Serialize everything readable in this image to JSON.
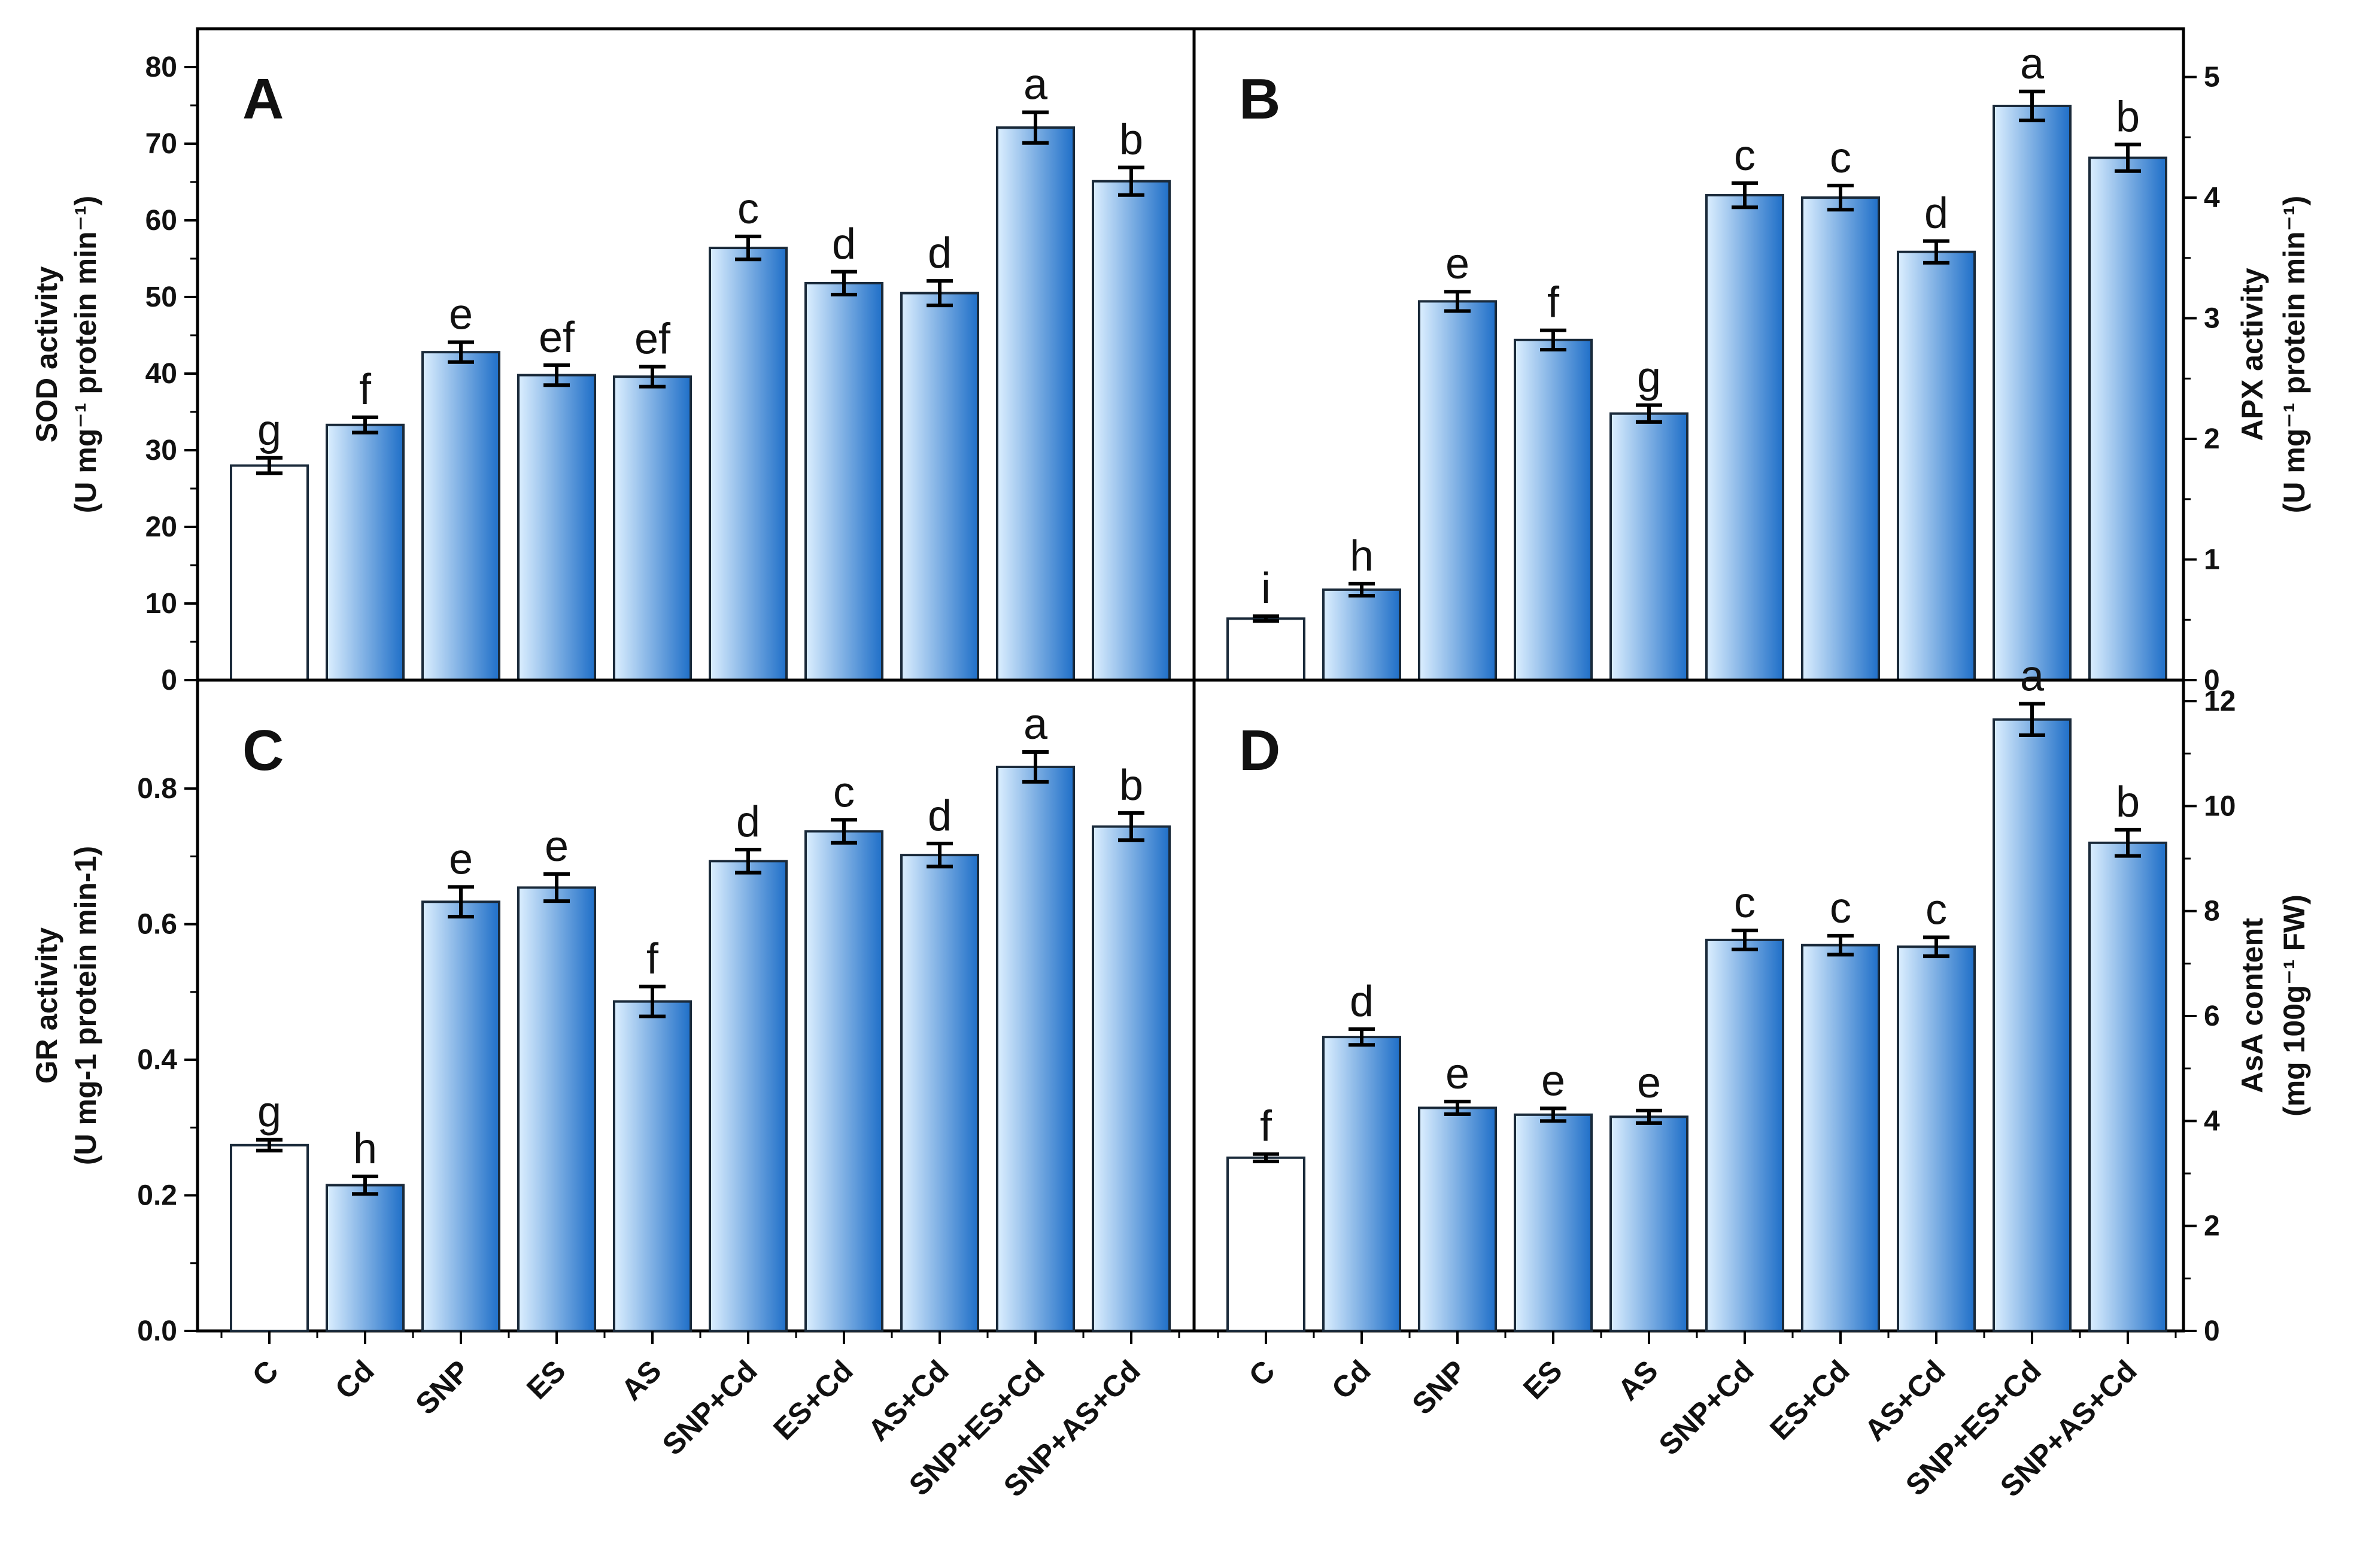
{
  "figure": {
    "categories": [
      "C",
      "Cd",
      "SNP",
      "ES",
      "AS",
      "SNP+Cd",
      "ES+Cd",
      "AS+Cd",
      "SNP+ES+Cd",
      "SNP+AS+Cd"
    ],
    "colors": {
      "bar_edge": "#1a2a3a",
      "bar_dark": "#1f6fc8",
      "bar_light": "#dcefff",
      "control_fill": "#ffffff",
      "axis": "#000000"
    }
  },
  "chart_data": [
    {
      "id": "A",
      "type": "bar",
      "panel_label": "A",
      "ylabel": "SOD activity",
      "ylabel_unit": "(U mg⁻¹ protein min⁻¹)",
      "ylim": [
        0,
        85
      ],
      "yticks": [
        0,
        10,
        20,
        30,
        40,
        50,
        60,
        70,
        80
      ],
      "ytick_labels": [
        "0",
        "10",
        "20",
        "30",
        "40",
        "50",
        "60",
        "70",
        "80"
      ],
      "axis_side": "left",
      "values": [
        28,
        33.3,
        42.8,
        39.8,
        39.6,
        56.4,
        51.8,
        50.5,
        72.1,
        65.1
      ],
      "errors": [
        1.0,
        1.0,
        1.3,
        1.3,
        1.3,
        1.5,
        1.5,
        1.6,
        2.0,
        1.8
      ],
      "letters": [
        "g",
        "f",
        "e",
        "ef",
        "ef",
        "c",
        "d",
        "d",
        "a",
        "b"
      ]
    },
    {
      "id": "B",
      "type": "bar",
      "panel_label": "B",
      "ylabel": "APX activity",
      "ylabel_unit": "(U mg⁻¹ protein min⁻¹)",
      "ylim": [
        0,
        5.4
      ],
      "yticks": [
        0,
        1,
        2,
        3,
        4,
        5
      ],
      "ytick_labels": [
        "0",
        "1",
        "2",
        "3",
        "4",
        "5"
      ],
      "axis_side": "right",
      "values": [
        0.51,
        0.75,
        3.14,
        2.82,
        2.21,
        4.02,
        4.0,
        3.55,
        4.76,
        4.33
      ],
      "errors": [
        0.02,
        0.05,
        0.08,
        0.08,
        0.07,
        0.1,
        0.1,
        0.09,
        0.12,
        0.11
      ],
      "letters": [
        "i",
        "h",
        "e",
        "f",
        "g",
        "c",
        "c",
        "d",
        "a",
        "b"
      ]
    },
    {
      "id": "C",
      "type": "bar",
      "panel_label": "C",
      "ylabel": "GR activity",
      "ylabel_unit": "(U mg-1 protein min-1)",
      "ylim": [
        0,
        0.96
      ],
      "yticks": [
        0,
        0.2,
        0.4,
        0.6,
        0.8
      ],
      "ytick_labels": [
        "0.0",
        "0.2",
        "0.4",
        "0.6",
        "0.8"
      ],
      "axis_side": "left",
      "values": [
        0.274,
        0.215,
        0.633,
        0.654,
        0.486,
        0.693,
        0.737,
        0.702,
        0.832,
        0.744
      ],
      "errors": [
        0.008,
        0.013,
        0.022,
        0.02,
        0.022,
        0.017,
        0.017,
        0.017,
        0.022,
        0.02
      ],
      "letters": [
        "g",
        "h",
        "e",
        "e",
        "f",
        "d",
        "c",
        "d",
        "a",
        "b"
      ]
    },
    {
      "id": "D",
      "type": "bar",
      "panel_label": "D",
      "ylabel": "AsA content",
      "ylabel_unit": "(mg 100g⁻¹ FW)",
      "ylim": [
        0,
        12.4
      ],
      "yticks": [
        0,
        2,
        4,
        6,
        8,
        10,
        12
      ],
      "ytick_labels": [
        "0",
        "2",
        "4",
        "6",
        "8",
        "10",
        "12"
      ],
      "axis_side": "right",
      "values": [
        3.3,
        5.6,
        4.25,
        4.12,
        4.08,
        7.45,
        7.35,
        7.32,
        11.65,
        9.3
      ],
      "errors": [
        0.07,
        0.15,
        0.12,
        0.12,
        0.12,
        0.18,
        0.18,
        0.18,
        0.3,
        0.25
      ],
      "letters": [
        "f",
        "d",
        "e",
        "e",
        "e",
        "c",
        "c",
        "c",
        "a",
        "b"
      ]
    }
  ]
}
